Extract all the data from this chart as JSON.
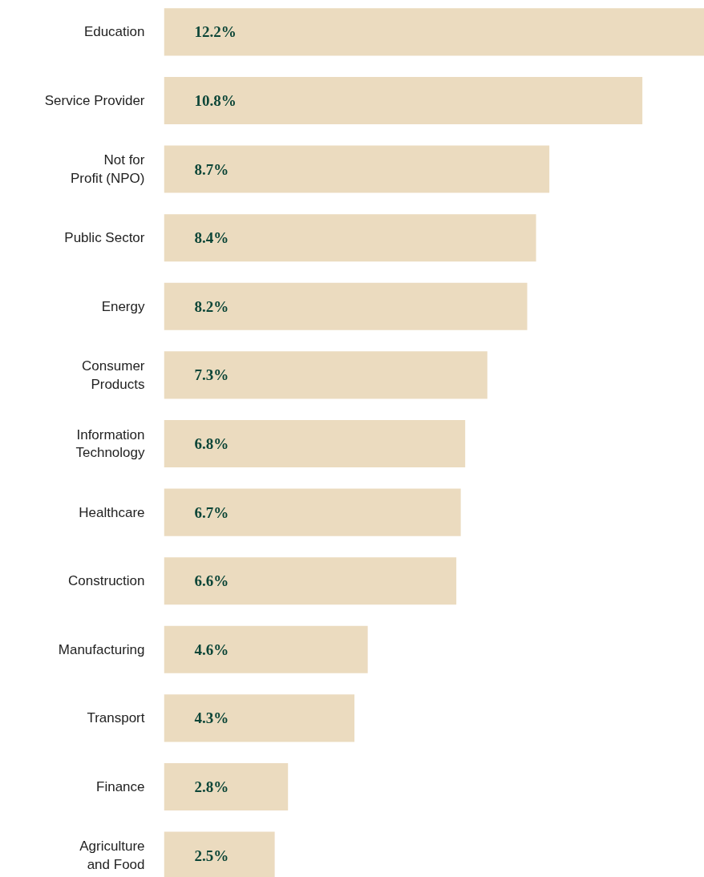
{
  "chart_data": {
    "type": "bar",
    "orientation": "horizontal",
    "categories": [
      "Education",
      "Service Provider",
      "Not for\nProfit (NPO)",
      "Public Sector",
      "Energy",
      "Consumer\nProducts",
      "Information\nTechnology",
      "Healthcare",
      "Construction",
      "Manufacturing",
      "Transport",
      "Finance",
      "Agriculture\nand Food"
    ],
    "values": [
      12.2,
      10.8,
      8.7,
      8.4,
      8.2,
      7.3,
      6.8,
      6.7,
      6.6,
      4.6,
      4.3,
      2.8,
      2.5
    ],
    "value_labels": [
      "12.2%",
      "10.8%",
      "8.7%",
      "8.4%",
      "8.2%",
      "7.3%",
      "6.8%",
      "6.7%",
      "6.6%",
      "4.6%",
      "4.3%",
      "2.8%",
      "2.5%"
    ],
    "color": "#ebdbbf"
  }
}
